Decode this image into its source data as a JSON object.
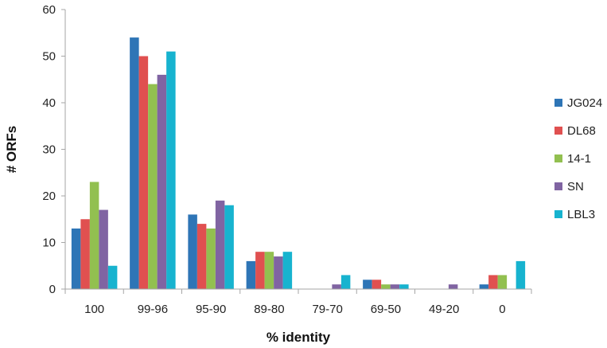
{
  "chart_data": {
    "type": "bar",
    "title": "",
    "xlabel": "% identity",
    "ylabel": "# ORFs",
    "ylim": [
      0,
      60
    ],
    "yticks": [
      0,
      10,
      20,
      30,
      40,
      50,
      60
    ],
    "grid": false,
    "legend_position": "right",
    "categories": [
      "100",
      "99-96",
      "95-90",
      "89-80",
      "79-70",
      "69-50",
      "49-20",
      "0"
    ],
    "series": [
      {
        "name": "JG024",
        "color": "#2e75b6",
        "values": [
          13,
          54,
          16,
          6,
          0,
          2,
          0,
          1
        ]
      },
      {
        "name": "DL68",
        "color": "#e05050",
        "values": [
          15,
          50,
          14,
          8,
          0,
          2,
          0,
          3
        ]
      },
      {
        "name": "14-1",
        "color": "#92c050",
        "values": [
          23,
          44,
          13,
          8,
          0,
          1,
          0,
          3
        ]
      },
      {
        "name": "SN",
        "color": "#8064a2",
        "values": [
          17,
          46,
          19,
          7,
          1,
          1,
          1,
          0
        ]
      },
      {
        "name": "LBL3",
        "color": "#17b3cf",
        "values": [
          5,
          51,
          18,
          8,
          3,
          1,
          0,
          6
        ]
      }
    ]
  }
}
